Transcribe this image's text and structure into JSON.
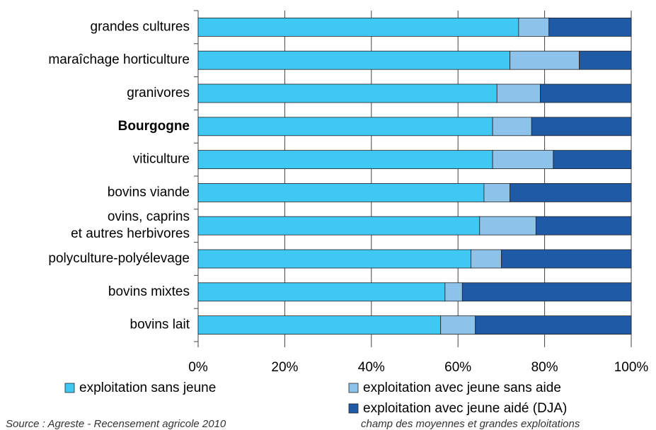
{
  "chart_data": {
    "type": "stacked_barh",
    "categories": [
      "grandes cultures",
      "maraîchage horticulture",
      "granivores",
      "Bourgogne",
      "viticulture",
      "bovins viande",
      "ovins, caprins et autres herbivores",
      "polyculture-polyélevage",
      "bovins mixtes",
      "bovins lait"
    ],
    "series": [
      {
        "name": "exploitation sans jeune",
        "color": "#3fc8f4",
        "values": [
          74,
          72,
          69,
          68,
          68,
          66,
          65,
          63,
          57,
          56
        ]
      },
      {
        "name": "exploitation avec jeune sans aide",
        "color": "#8dc3ea",
        "values": [
          7,
          16,
          10,
          9,
          14,
          6,
          13,
          7,
          4,
          8
        ]
      },
      {
        "name": "exploitation avec jeune aidé (DJA)",
        "color": "#1f5aa6",
        "values": [
          19,
          12,
          21,
          23,
          18,
          28,
          22,
          30,
          39,
          36
        ]
      }
    ],
    "xlim": [
      0,
      100
    ],
    "xticks": [
      {
        "value": 0,
        "label": "0%"
      },
      {
        "value": 20,
        "label": "20%"
      },
      {
        "value": 40,
        "label": "40%"
      },
      {
        "value": 60,
        "label": "60%"
      },
      {
        "value": 80,
        "label": "80%"
      },
      {
        "value": 100,
        "label": "100%"
      }
    ],
    "grid": true,
    "source": "Source : Agreste - Recensement agricole 2010",
    "note": "champ des moyennes et grandes exploitations"
  }
}
